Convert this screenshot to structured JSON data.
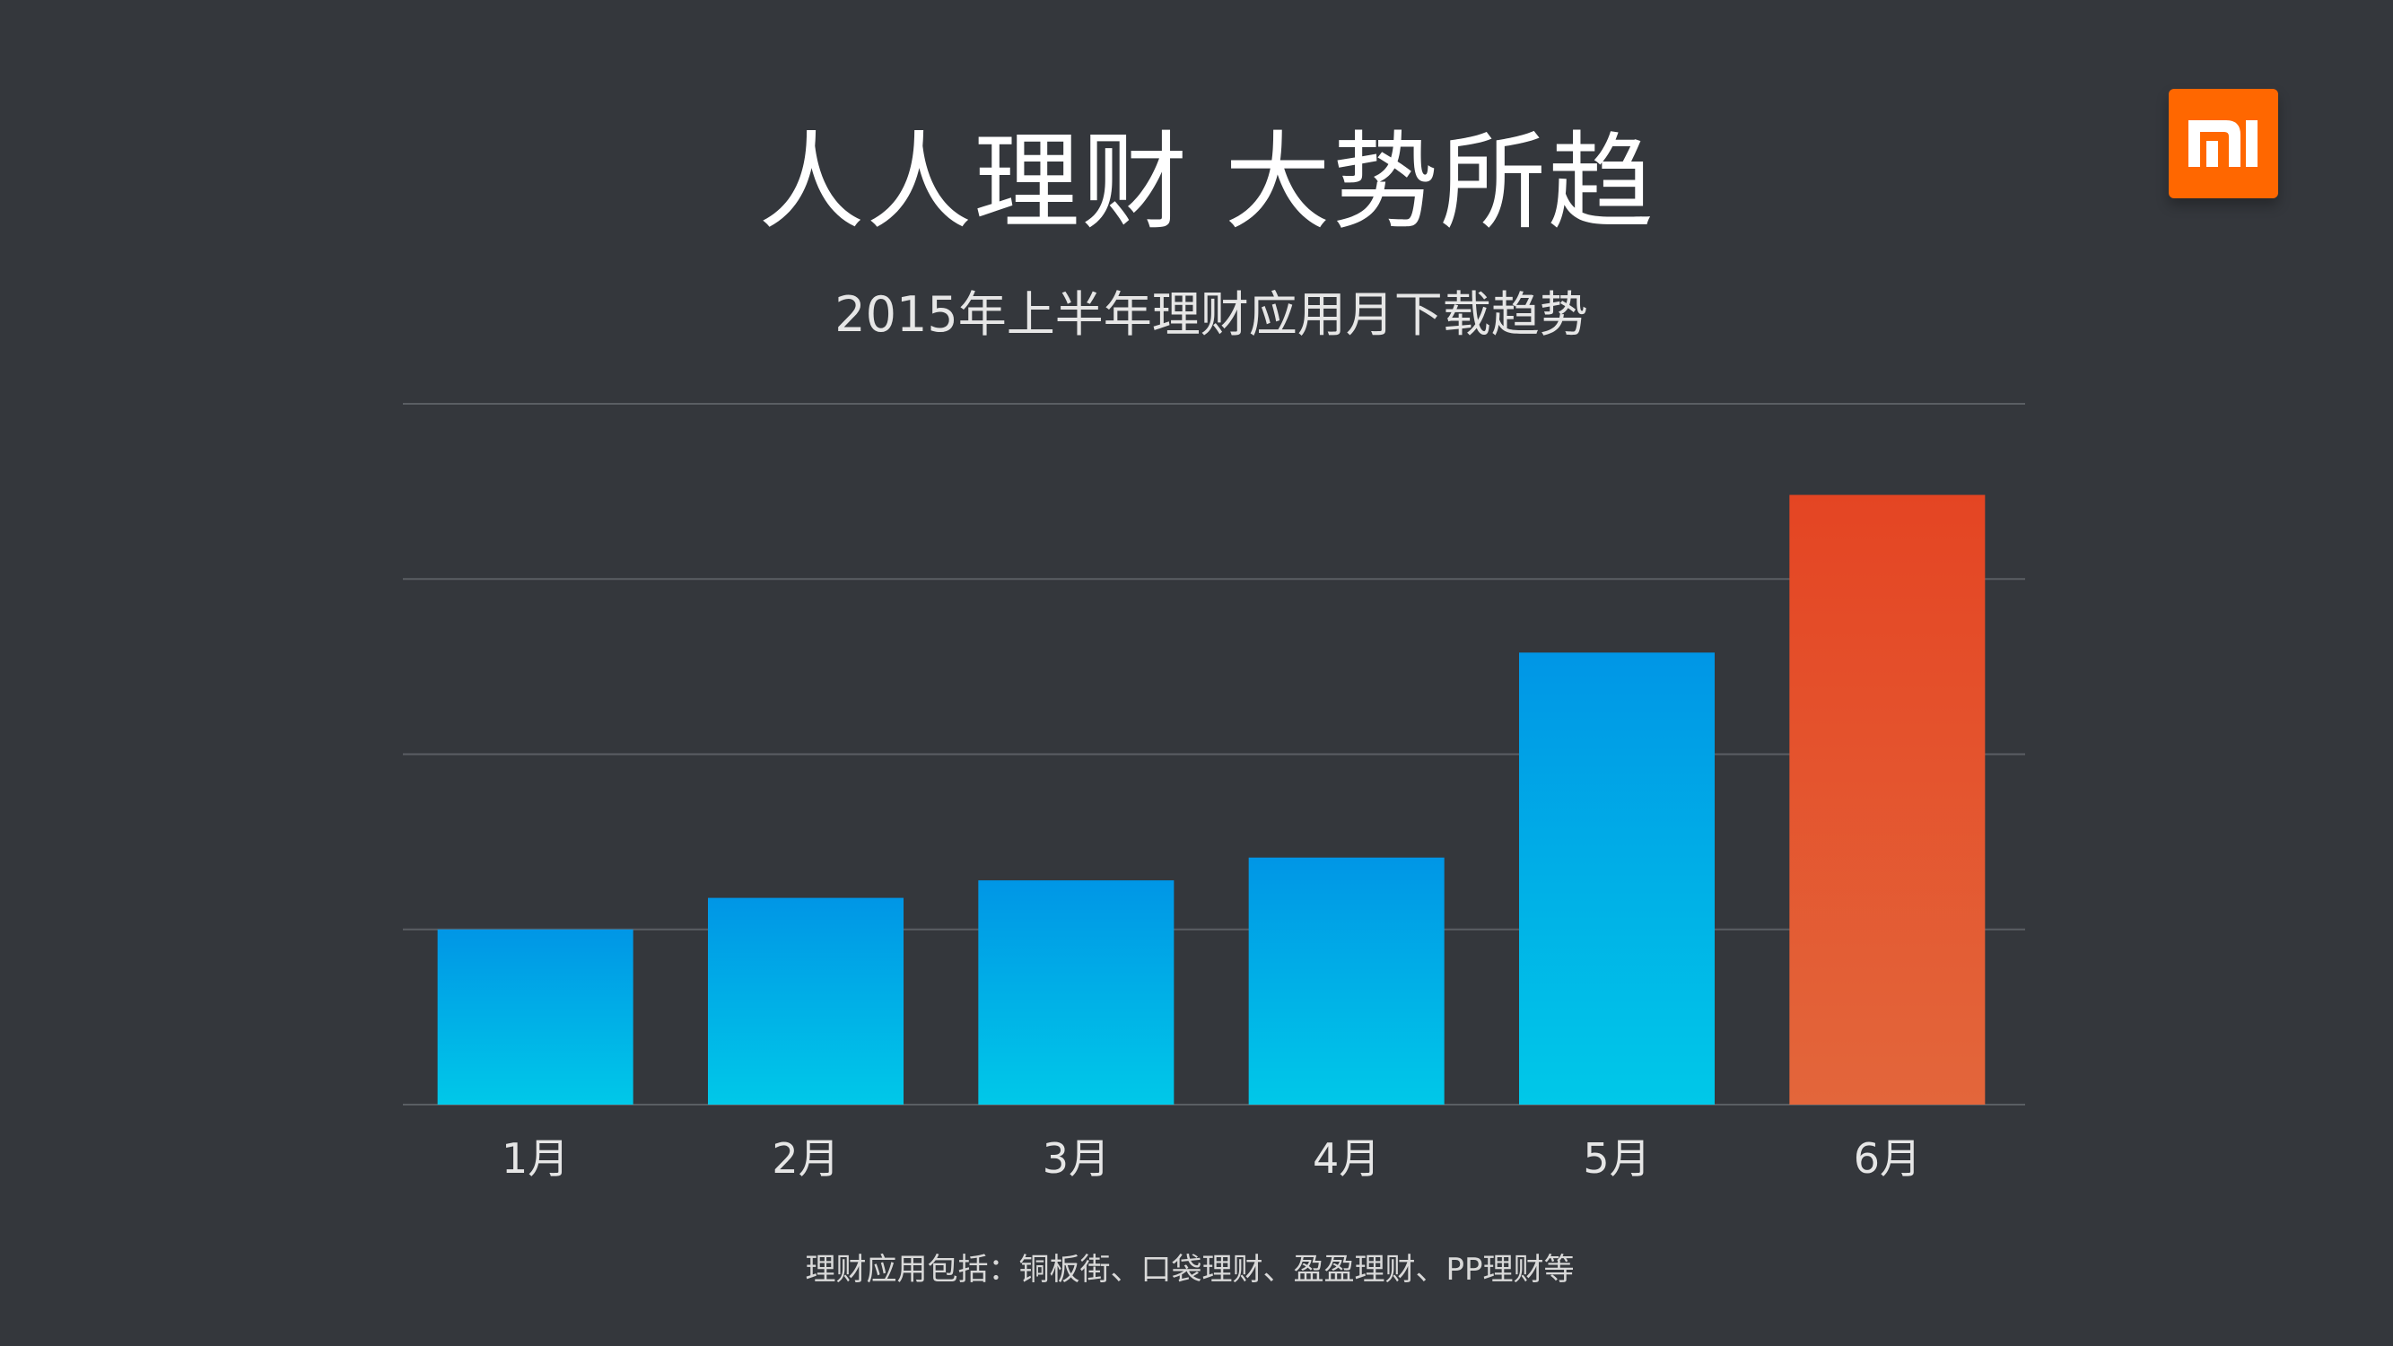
{
  "title": "人人理财 大势所趋",
  "subtitle": "2015年上半年理财应用月下载趋势",
  "footnote": "理财应用包括：铜板街、口袋理财、盈盈理财、PP理财等",
  "logo": {
    "icon": "mi-logo-icon",
    "color": "#ff6700"
  },
  "colors": {
    "background": "#34373c",
    "bar_top": "#0096e6",
    "bar_bottom": "#00c8e8",
    "highlight_top": "#e44523",
    "highlight_bottom": "#e3663b",
    "grid": "#5a5e63"
  },
  "chart_data": {
    "type": "bar",
    "categories": [
      "1月",
      "2月",
      "3月",
      "4月",
      "5月",
      "6月"
    ],
    "values": [
      1.0,
      1.18,
      1.28,
      1.41,
      2.58,
      3.48
    ],
    "highlight_index": 5,
    "ylim": [
      0,
      4
    ],
    "yticks": [
      0,
      1,
      2,
      3,
      4
    ],
    "grid": true,
    "y_tick_labels_shown": false
  }
}
